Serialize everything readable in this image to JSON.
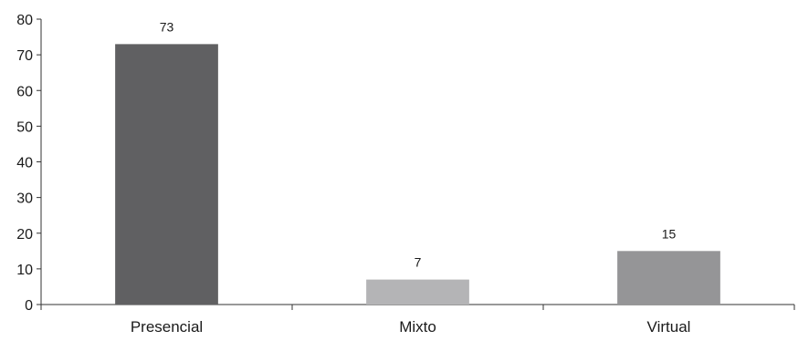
{
  "chart_data": {
    "type": "bar",
    "title": "",
    "xlabel": "",
    "ylabel": "",
    "categories": [
      "Presencial",
      "Mixto",
      "Virtual"
    ],
    "values": [
      73,
      7,
      15
    ],
    "data_labels": [
      "73",
      "7",
      "15"
    ],
    "bar_colors": [
      "#606062",
      "#b4b4b6",
      "#959597"
    ],
    "ylim": [
      0,
      80
    ],
    "yticks": [
      0,
      10,
      20,
      30,
      40,
      50,
      60,
      70,
      80
    ],
    "ytick_labels": [
      "0",
      "10",
      "20",
      "30",
      "40",
      "50",
      "60",
      "70",
      "80"
    ],
    "grid": false,
    "legend": "none"
  }
}
